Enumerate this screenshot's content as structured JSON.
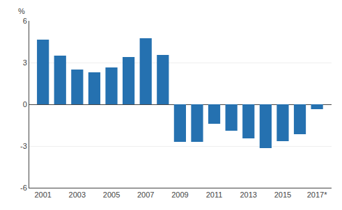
{
  "chart_data": {
    "type": "bar",
    "x": [
      2001,
      2002,
      2003,
      2004,
      2005,
      2006,
      2007,
      2008,
      2009,
      2010,
      2011,
      2012,
      2013,
      2014,
      2015,
      2016,
      2017
    ],
    "values": [
      4.65,
      3.5,
      2.5,
      2.3,
      2.65,
      3.4,
      4.75,
      3.55,
      -2.7,
      -2.7,
      -1.4,
      -1.9,
      -2.45,
      -3.15,
      -2.65,
      -2.15,
      -0.35
    ],
    "color": "#2571b0",
    "xlim": [
      2000.2,
      2017.85
    ],
    "xticks": [
      2001,
      2003,
      2005,
      2007,
      2009,
      2011,
      2013,
      2015,
      {
        "value": 2017,
        "label": "2017*"
      }
    ],
    "ylim": [
      -6,
      6
    ],
    "yticks": [
      -6,
      -3,
      0,
      3,
      6
    ],
    "ylabel": "%",
    "grid": "y"
  }
}
